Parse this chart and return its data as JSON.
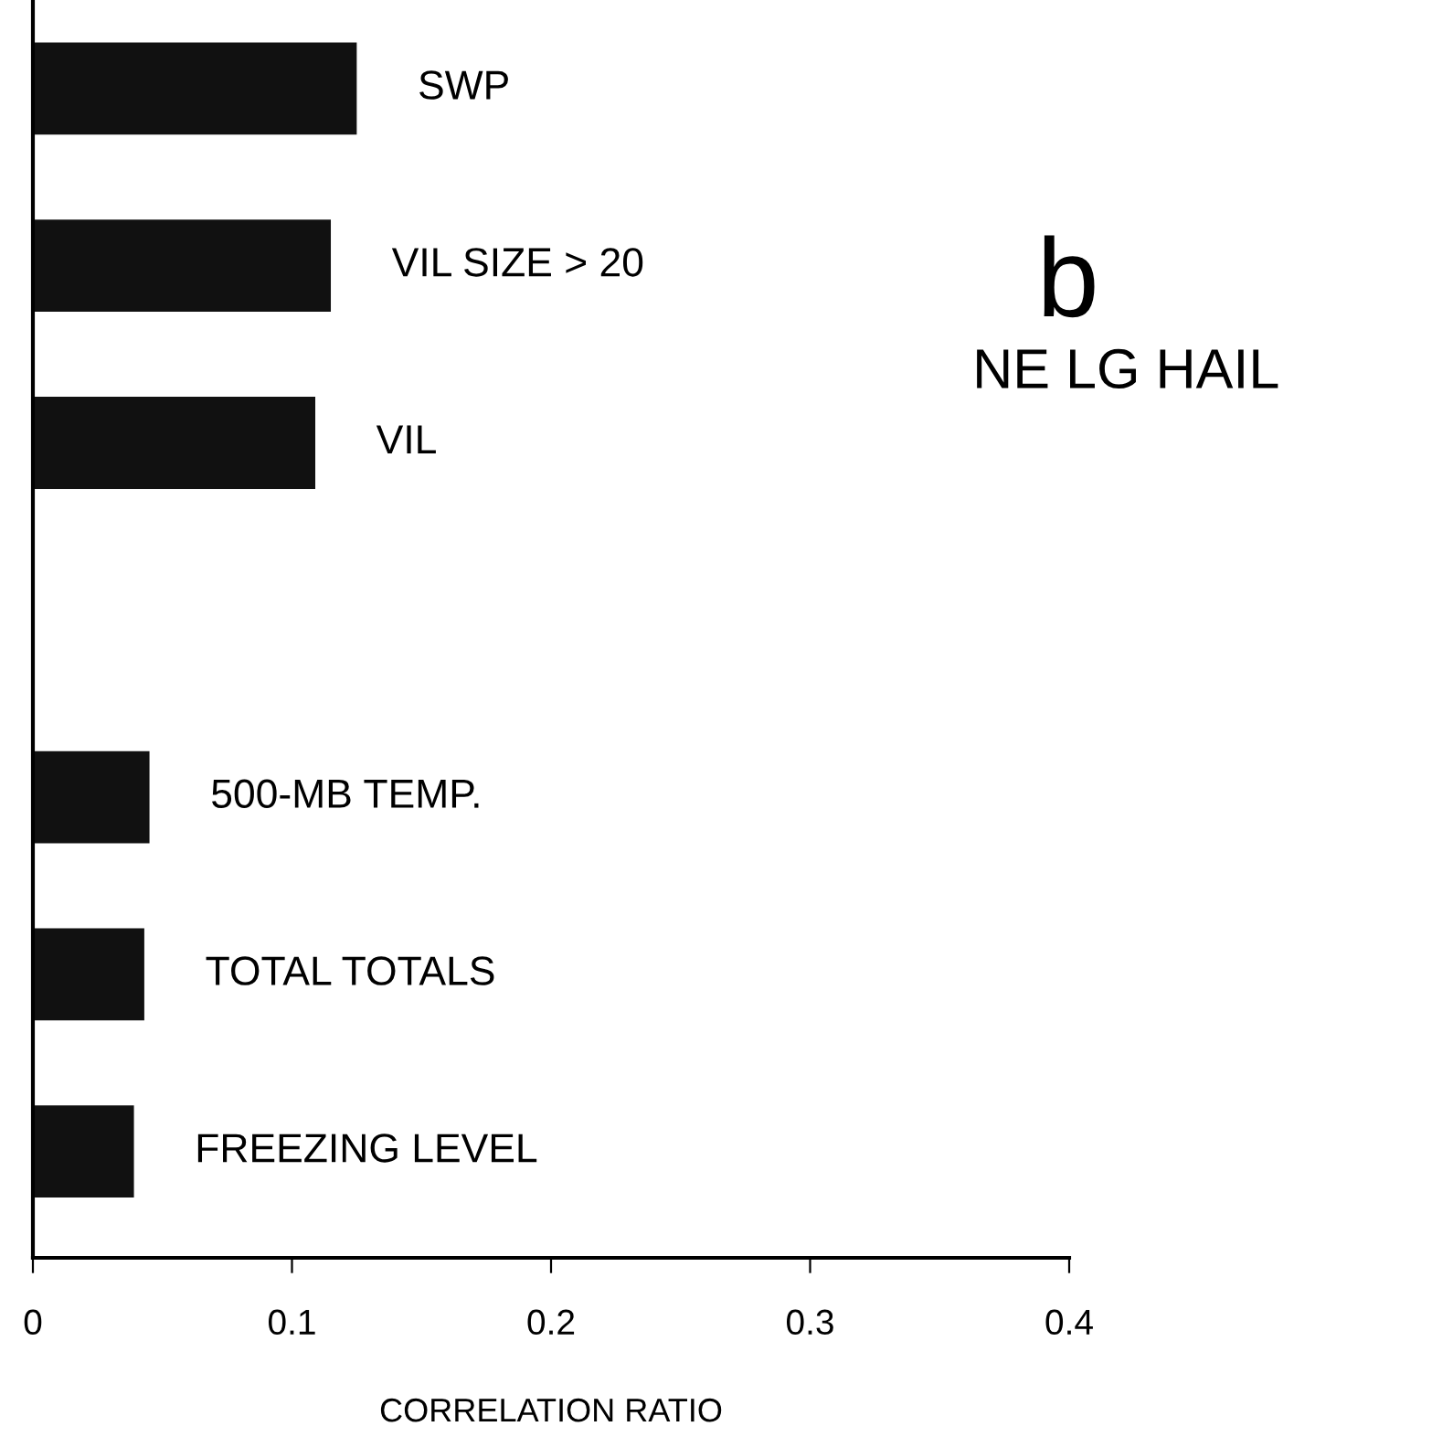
{
  "chart_data": {
    "type": "bar",
    "orientation": "horizontal",
    "xlabel": "CORRELATION RATIO",
    "categories": [
      "SWP",
      "VIL SIZE > 20",
      "VIL",
      null,
      "500-MB TEMP.",
      "TOTAL TOTALS",
      "FREEZING LEVEL"
    ],
    "values": [
      0.125,
      0.115,
      0.109,
      null,
      0.045,
      0.043,
      0.039
    ],
    "color": "#111111",
    "xlim": [
      0,
      0.4
    ],
    "xticks": [
      0,
      0.1,
      0.2,
      0.3,
      0.4
    ],
    "tick_labels": "x",
    "grid": false,
    "legend": false,
    "annotations": [
      "b",
      "NE LG HAIL"
    ]
  }
}
